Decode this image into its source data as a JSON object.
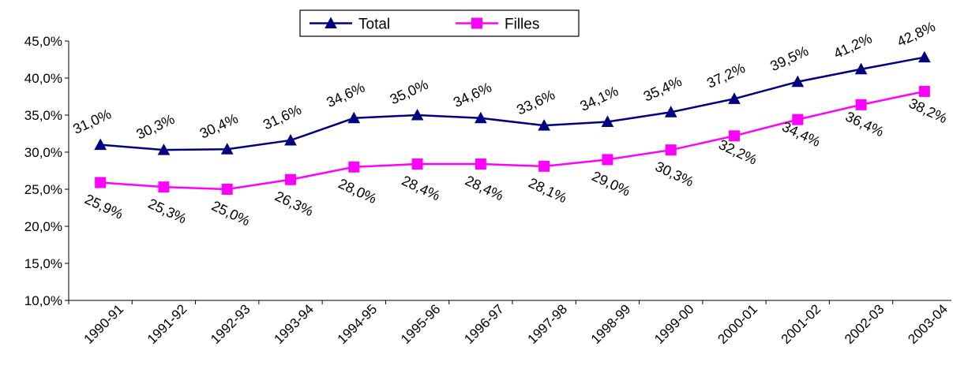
{
  "chart_data": {
    "type": "line",
    "categories": [
      "1990-91",
      "1991-92",
      "1992-93",
      "1993-94",
      "1994-95",
      "1995-96",
      "1996-97",
      "1997-98",
      "1998-99",
      "1999-00",
      "2000-01",
      "2001-02",
      "2002-03",
      "2003-04"
    ],
    "series": [
      {
        "name": "Total",
        "values": [
          31.0,
          30.3,
          30.4,
          31.6,
          34.6,
          35.0,
          34.6,
          33.6,
          34.1,
          35.4,
          37.2,
          39.5,
          41.2,
          42.8
        ],
        "labels": [
          "31,0%",
          "30,3%",
          "30,4%",
          "31,6%",
          "34,6%",
          "35,0%",
          "34,6%",
          "33,6%",
          "34,1%",
          "35,4%",
          "37,2%",
          "39,5%",
          "41,2%",
          "42,8%"
        ],
        "color": "#000080",
        "marker": "triangle"
      },
      {
        "name": "Filles",
        "values": [
          25.9,
          25.3,
          25.0,
          26.3,
          28.0,
          28.4,
          28.4,
          28.1,
          29.0,
          30.3,
          32.2,
          34.4,
          36.4,
          38.2
        ],
        "labels": [
          "25,9%",
          "25,3%",
          "25,0%",
          "26,3%",
          "28,0%",
          "28,4%",
          "28,4%",
          "28,1%",
          "29,0%",
          "30,3%",
          "32,2%",
          "34,4%",
          "36,4%",
          "38,2%"
        ],
        "color": "#FF00FF",
        "marker": "square"
      }
    ],
    "y_ticks": [
      10,
      15,
      20,
      25,
      30,
      35,
      40,
      45
    ],
    "y_tick_labels": [
      "10,0%",
      "15,0%",
      "20,0%",
      "25,0%",
      "30,0%",
      "35,0%",
      "40,0%",
      "45,0%"
    ],
    "ylim": [
      10,
      45
    ],
    "grid": false,
    "legend_position": "top-center"
  }
}
